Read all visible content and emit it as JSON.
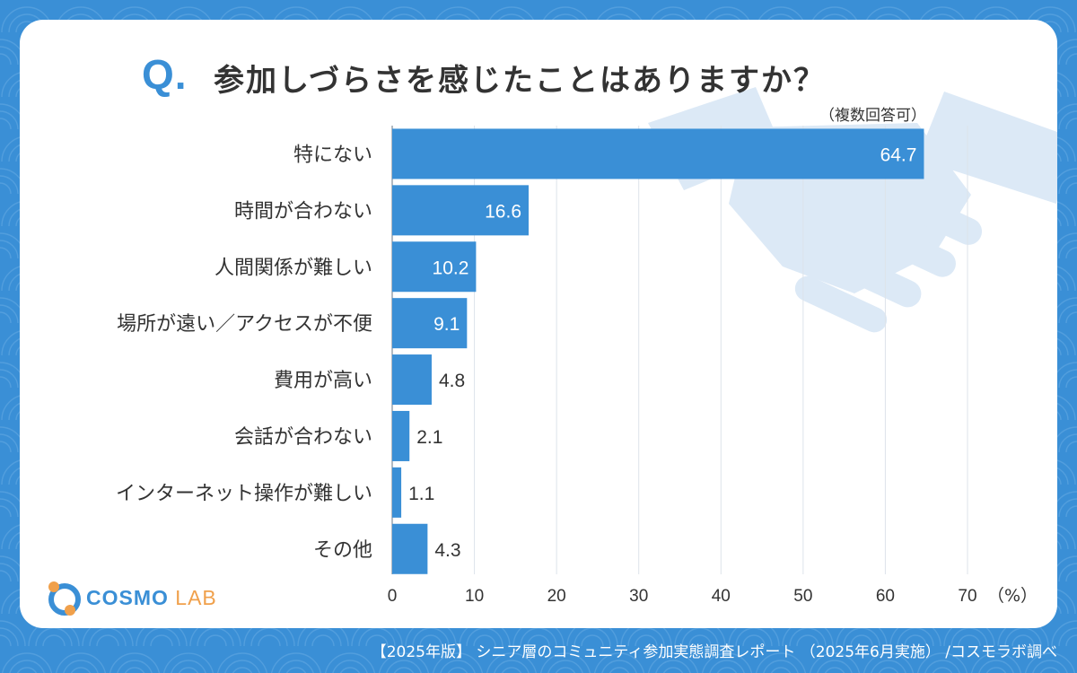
{
  "header": {
    "q_mark": "Q.",
    "title": "参加しづらさを感じたことはありますか？",
    "subtitle": "（複数回答可）"
  },
  "logo": {
    "brand_main": "COSMO",
    "brand_sub": "LAB"
  },
  "footer": {
    "source": "【2025年版】 シニア層のコミュニティ参加実態調査レポート （2025年6月実施） /コスモラボ調べ"
  },
  "colors": {
    "bar": "#3a8fd6",
    "background": "#3a8fd6",
    "accent_orange": "#f0a04b",
    "label": "#333333"
  },
  "chart_data": {
    "type": "bar",
    "orientation": "horizontal",
    "title": "参加しづらさを感じたことはありますか？",
    "categories": [
      "特にない",
      "時間が合わない",
      "人間関係が難しい",
      "場所が遠い／アクセスが不便",
      "費用が高い",
      "会話が合わない",
      "インターネット操作が難しい",
      "その他"
    ],
    "values": [
      64.7,
      16.6,
      10.2,
      9.1,
      4.8,
      2.1,
      1.1,
      4.3
    ],
    "xlim": [
      0,
      70
    ],
    "xticks": [
      0,
      10,
      20,
      30,
      40,
      50,
      60,
      70
    ],
    "xunit": "（%）",
    "grid": true
  }
}
